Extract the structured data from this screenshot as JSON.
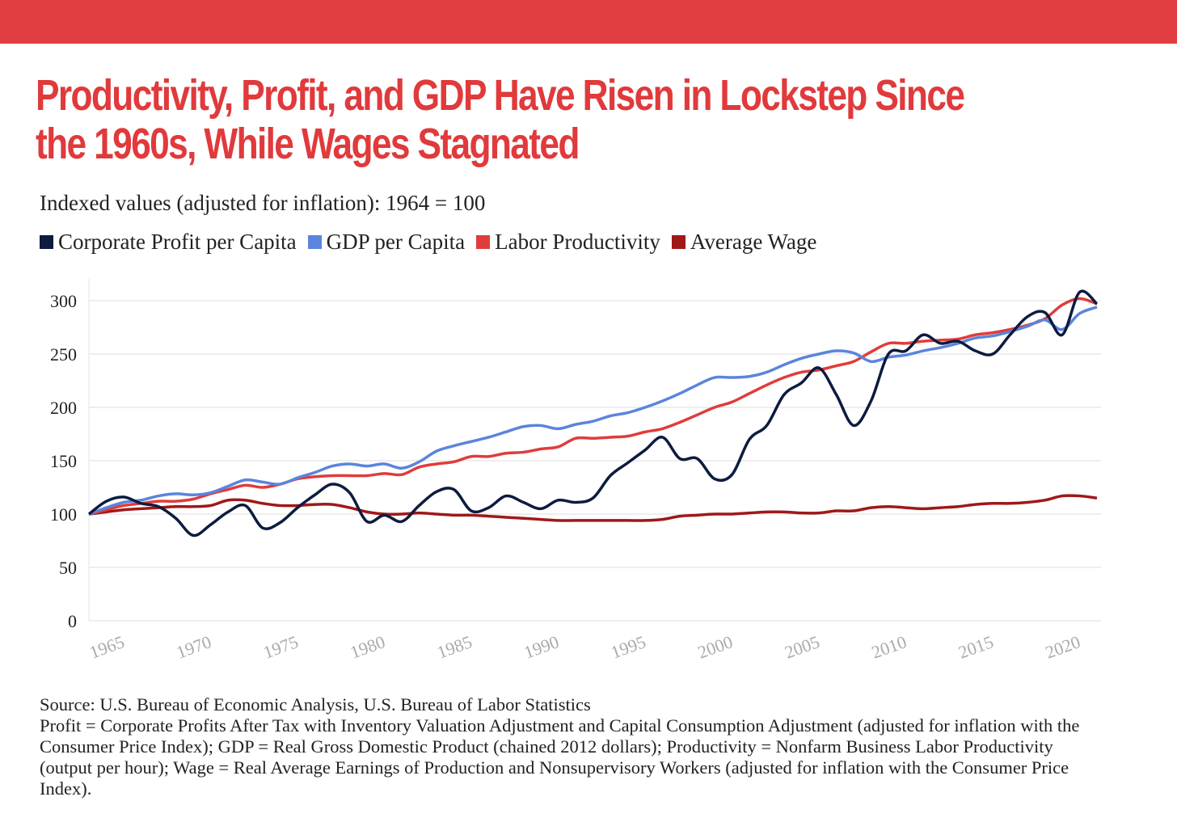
{
  "title_line1": "Productivity, Profit, and GDP Have Risen in Lockstep Since",
  "title_line2": "the 1960s, While Wages Stagnated",
  "subtitle": "Indexed values (adjusted for inflation): 1964 = 100",
  "colors": {
    "topbar": "#e03e40",
    "title": "#e03a3c"
  },
  "chart_data": {
    "type": "line",
    "title": "Productivity, Profit, and GDP Have Risen in Lockstep Since the 1960s, While Wages Stagnated",
    "ylabel": "Indexed values (adjusted for inflation): 1964 = 100",
    "xlabel": "",
    "xlim": [
      1964,
      2022
    ],
    "ylim": [
      0,
      320
    ],
    "yticks": [
      0,
      50,
      100,
      150,
      200,
      250,
      300
    ],
    "xticks": [
      1965,
      1970,
      1975,
      1980,
      1985,
      1990,
      1995,
      2000,
      2005,
      2010,
      2015,
      2020
    ],
    "grid": true,
    "legend_position": "top-left",
    "x_start": 1964,
    "series": [
      {
        "name": "Corporate Profit per Capita",
        "color": "#0d1b3e",
        "values": [
          100,
          112,
          116,
          110,
          107,
          96,
          80,
          90,
          102,
          108,
          87,
          92,
          106,
          118,
          128,
          120,
          93,
          99,
          93,
          108,
          121,
          123,
          103,
          106,
          117,
          111,
          105,
          113,
          111,
          115,
          136,
          148,
          160,
          172,
          152,
          152,
          133,
          137,
          170,
          183,
          212,
          223,
          237,
          212,
          183,
          206,
          250,
          253,
          268,
          260,
          262,
          253,
          250,
          268,
          285,
          289,
          268,
          308,
          297
        ]
      },
      {
        "name": "GDP per Capita",
        "color": "#5b84dc",
        "values": [
          100,
          106,
          111,
          113,
          117,
          119,
          118,
          120,
          126,
          132,
          130,
          128,
          134,
          139,
          145,
          147,
          145,
          147,
          143,
          149,
          159,
          164,
          168,
          172,
          177,
          182,
          183,
          180,
          184,
          187,
          192,
          195,
          200,
          206,
          213,
          221,
          228,
          228,
          229,
          233,
          240,
          246,
          250,
          253,
          251,
          243,
          247,
          249,
          253,
          256,
          260,
          265,
          267,
          271,
          276,
          282,
          273,
          288,
          294
        ]
      },
      {
        "name": "Labor Productivity",
        "color": "#e03c3c",
        "values": [
          100,
          104,
          108,
          110,
          112,
          112,
          114,
          119,
          123,
          127,
          125,
          128,
          133,
          135,
          136,
          136,
          136,
          138,
          137,
          144,
          147,
          149,
          154,
          154,
          157,
          158,
          161,
          163,
          171,
          171,
          172,
          173,
          177,
          180,
          186,
          193,
          200,
          205,
          213,
          221,
          228,
          233,
          235,
          239,
          243,
          252,
          260,
          260,
          262,
          263,
          264,
          268,
          270,
          273,
          277,
          283,
          296,
          302,
          297
        ]
      },
      {
        "name": "Average Wage",
        "color": "#a01818",
        "values": [
          100,
          102,
          104,
          105,
          106,
          107,
          107,
          108,
          113,
          113,
          110,
          108,
          108,
          109,
          109,
          106,
          102,
          100,
          100,
          101,
          100,
          99,
          99,
          98,
          97,
          96,
          95,
          94,
          94,
          94,
          94,
          94,
          94,
          95,
          98,
          99,
          100,
          100,
          101,
          102,
          102,
          101,
          101,
          103,
          103,
          106,
          107,
          106,
          105,
          106,
          107,
          109,
          110,
          110,
          111,
          113,
          117,
          117,
          115
        ]
      }
    ]
  },
  "source": {
    "line1": "Source: U.S. Bureau of Economic Analysis, U.S. Bureau of Labor Statistics",
    "notes": "Profit = Corporate Profits After Tax with Inventory Valuation Adjustment and Capital Consumption Adjustment (adjusted for inflation with the Consumer Price Index); GDP = Real Gross Domestic Product (chained 2012 dollars); Productivity = Nonfarm Business Labor Productivity (output per hour); Wage = Real Average Earnings of Production and Nonsupervisory Workers (adjusted for inflation with the Consumer Price Index)."
  }
}
